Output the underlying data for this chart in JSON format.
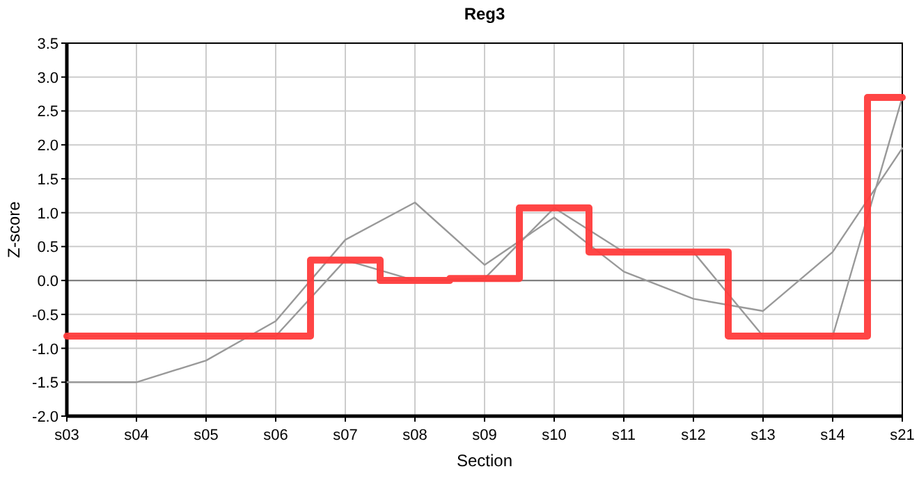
{
  "chart_data": {
    "type": "line",
    "title": "Reg3",
    "xlabel": "Section",
    "ylabel": "Z-score",
    "categories": [
      "s03",
      "s04",
      "s05",
      "s06",
      "s07",
      "s08",
      "s09",
      "s10",
      "s11",
      "s12",
      "s13",
      "s14",
      "s21"
    ],
    "series": [
      {
        "color": "#999999",
        "values": [
          -1.5,
          -1.5,
          -1.18,
          -0.6,
          0.6,
          1.15,
          0.23,
          0.93,
          0.13,
          -0.27,
          -0.45,
          0.42,
          1.95
        ]
      },
      {
        "color": "#999999",
        "values": [
          -0.82,
          -0.82,
          -0.82,
          -0.82,
          0.3,
          0.0,
          0.03,
          1.07,
          0.42,
          0.42,
          -0.82,
          -0.82,
          2.7
        ]
      },
      {
        "type": "step",
        "color": "#ff3b3b",
        "values": [
          -0.82,
          -0.82,
          -0.82,
          -0.82,
          0.3,
          0.0,
          0.03,
          1.07,
          0.42,
          0.42,
          -0.82,
          -0.82,
          2.7
        ]
      }
    ],
    "ylim": [
      -2.0,
      3.5
    ],
    "yticks": [
      {
        "value": -2,
        "label": "-2.0"
      },
      {
        "value": -1.5,
        "label": "-1.5"
      },
      {
        "value": -1,
        "label": "-1.0"
      },
      {
        "value": -0.5,
        "label": "-0.5"
      },
      {
        "value": 0,
        "label": "0.0"
      },
      {
        "value": 0.5,
        "label": "0.5"
      },
      {
        "value": 1,
        "label": "1.0"
      },
      {
        "value": 1.5,
        "label": "1.5"
      },
      {
        "value": 2,
        "label": "2.0"
      },
      {
        "value": 2.5,
        "label": "2.5"
      },
      {
        "value": 3,
        "label": "3.0"
      },
      {
        "value": 3.5,
        "label": "3.5"
      }
    ],
    "ref_lines": [
      {
        "axis": "y",
        "value": 0,
        "color": "#808080"
      }
    ],
    "grid": true
  }
}
